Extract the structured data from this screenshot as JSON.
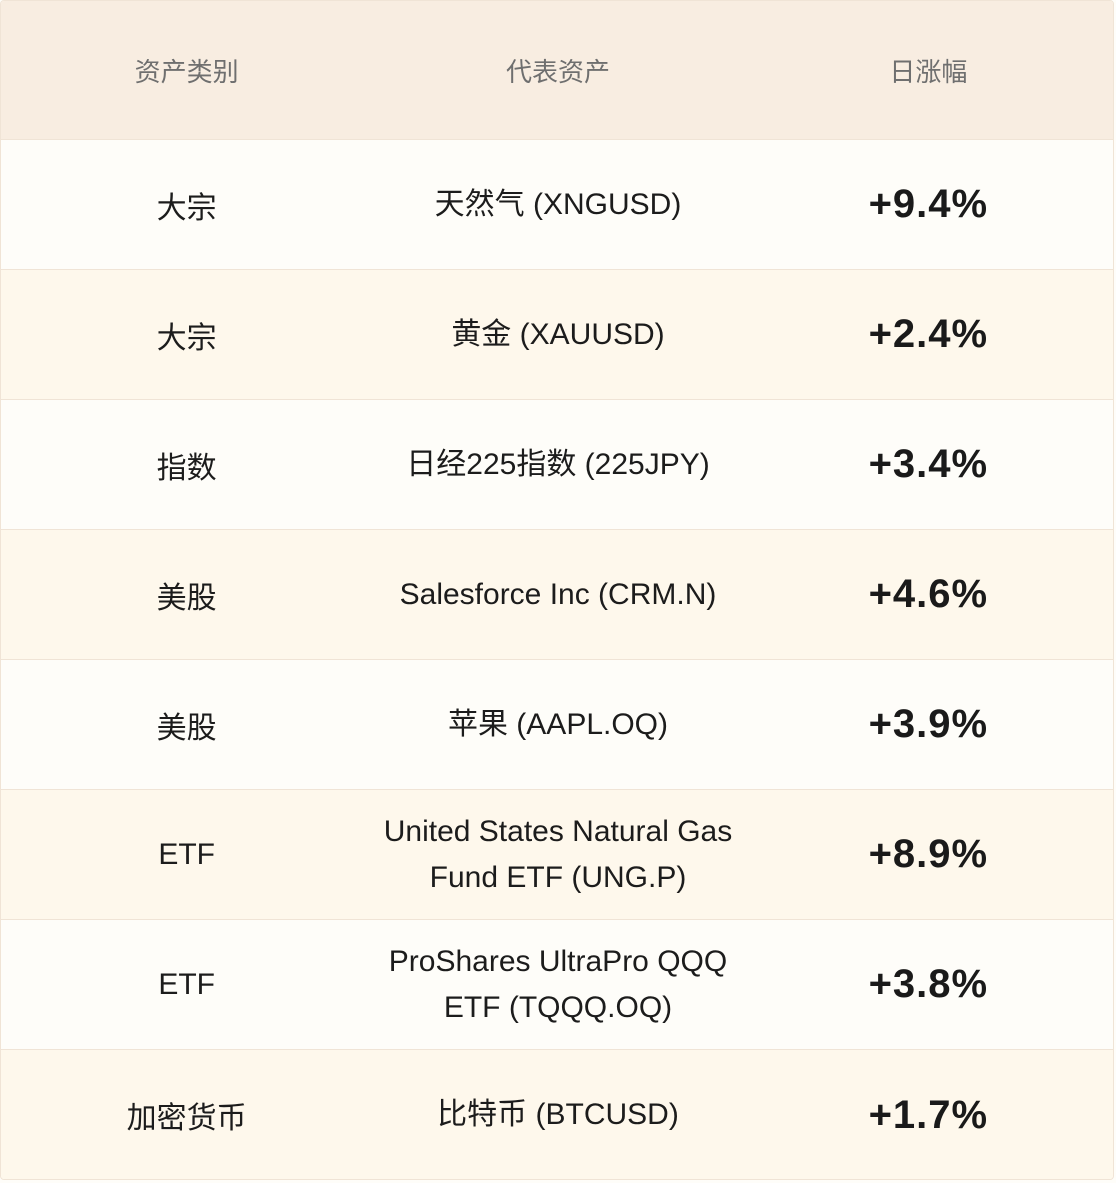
{
  "header": {
    "category": "资产类别",
    "asset": "代表资产",
    "change": "日涨幅"
  },
  "rows": [
    {
      "category": "大宗",
      "asset": "天然气 (XNGUSD)",
      "change": "+9.4%"
    },
    {
      "category": "大宗",
      "asset": "黄金 (XAUUSD)",
      "change": "+2.4%"
    },
    {
      "category": "指数",
      "asset": "日经225指数 (225JPY)",
      "change": "+3.4%"
    },
    {
      "category": "美股",
      "asset": "Salesforce Inc (CRM.N)",
      "change": "+4.6%"
    },
    {
      "category": "美股",
      "asset": "苹果 (AAPL.OQ)",
      "change": "+3.9%"
    },
    {
      "category": "ETF",
      "asset": "United States Natural Gas Fund ETF (UNG.P)",
      "change": "+8.9%"
    },
    {
      "category": "ETF",
      "asset": "ProShares UltraPro QQQ ETF (TQQQ.OQ)",
      "change": "+3.8%"
    },
    {
      "category": "加密货币",
      "asset": "比特币 (BTCUSD)",
      "change": "+1.7%"
    }
  ]
}
